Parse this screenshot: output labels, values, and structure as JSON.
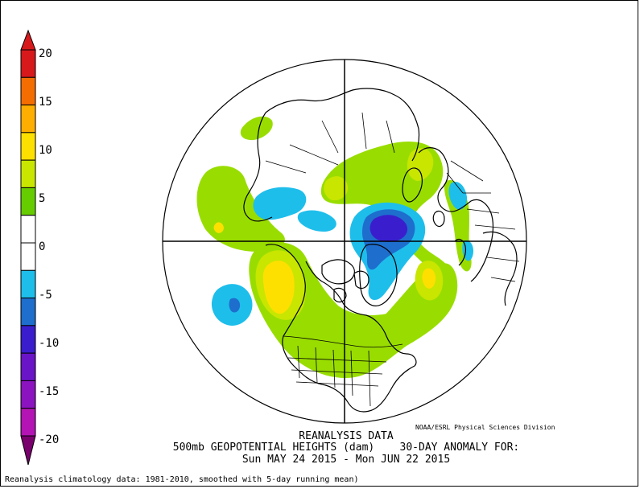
{
  "colorbar": {
    "labels": [
      "20",
      "15",
      "10",
      "5",
      "0",
      "-5",
      "-10",
      "-15",
      "-20"
    ],
    "colors": [
      "#d7191c",
      "#f46d00",
      "#fdae00",
      "#fee000",
      "#c8e600",
      "#66cc00",
      "#ffffff",
      "#ffffff",
      "#1ebeeb",
      "#1e6ecd",
      "#3a1ecd",
      "#6a14c8",
      "#8c14c0",
      "#b414b4",
      "#7a006e"
    ]
  },
  "title": {
    "line1": "REANALYSIS DATA",
    "line2": "500mb GEOPOTENTIAL HEIGHTS (dam)    30-DAY ANOMALY FOR:",
    "line3": "Sun MAY 24 2015 - Mon JUN 22 2015"
  },
  "credit": "NOAA/ESRL Physical Sciences Division",
  "footnote": "Reanalysis climatology data: 1981-2010, smoothed with 5-day running mean)",
  "anomaly_colors": {
    "pos_light": "#99dd00",
    "pos_mid": "#c8e600",
    "pos_strong": "#fee000",
    "neg_light": "#1ebeeb",
    "neg_mid": "#1e6ecd",
    "neg_strong": "#3a1ecd"
  }
}
